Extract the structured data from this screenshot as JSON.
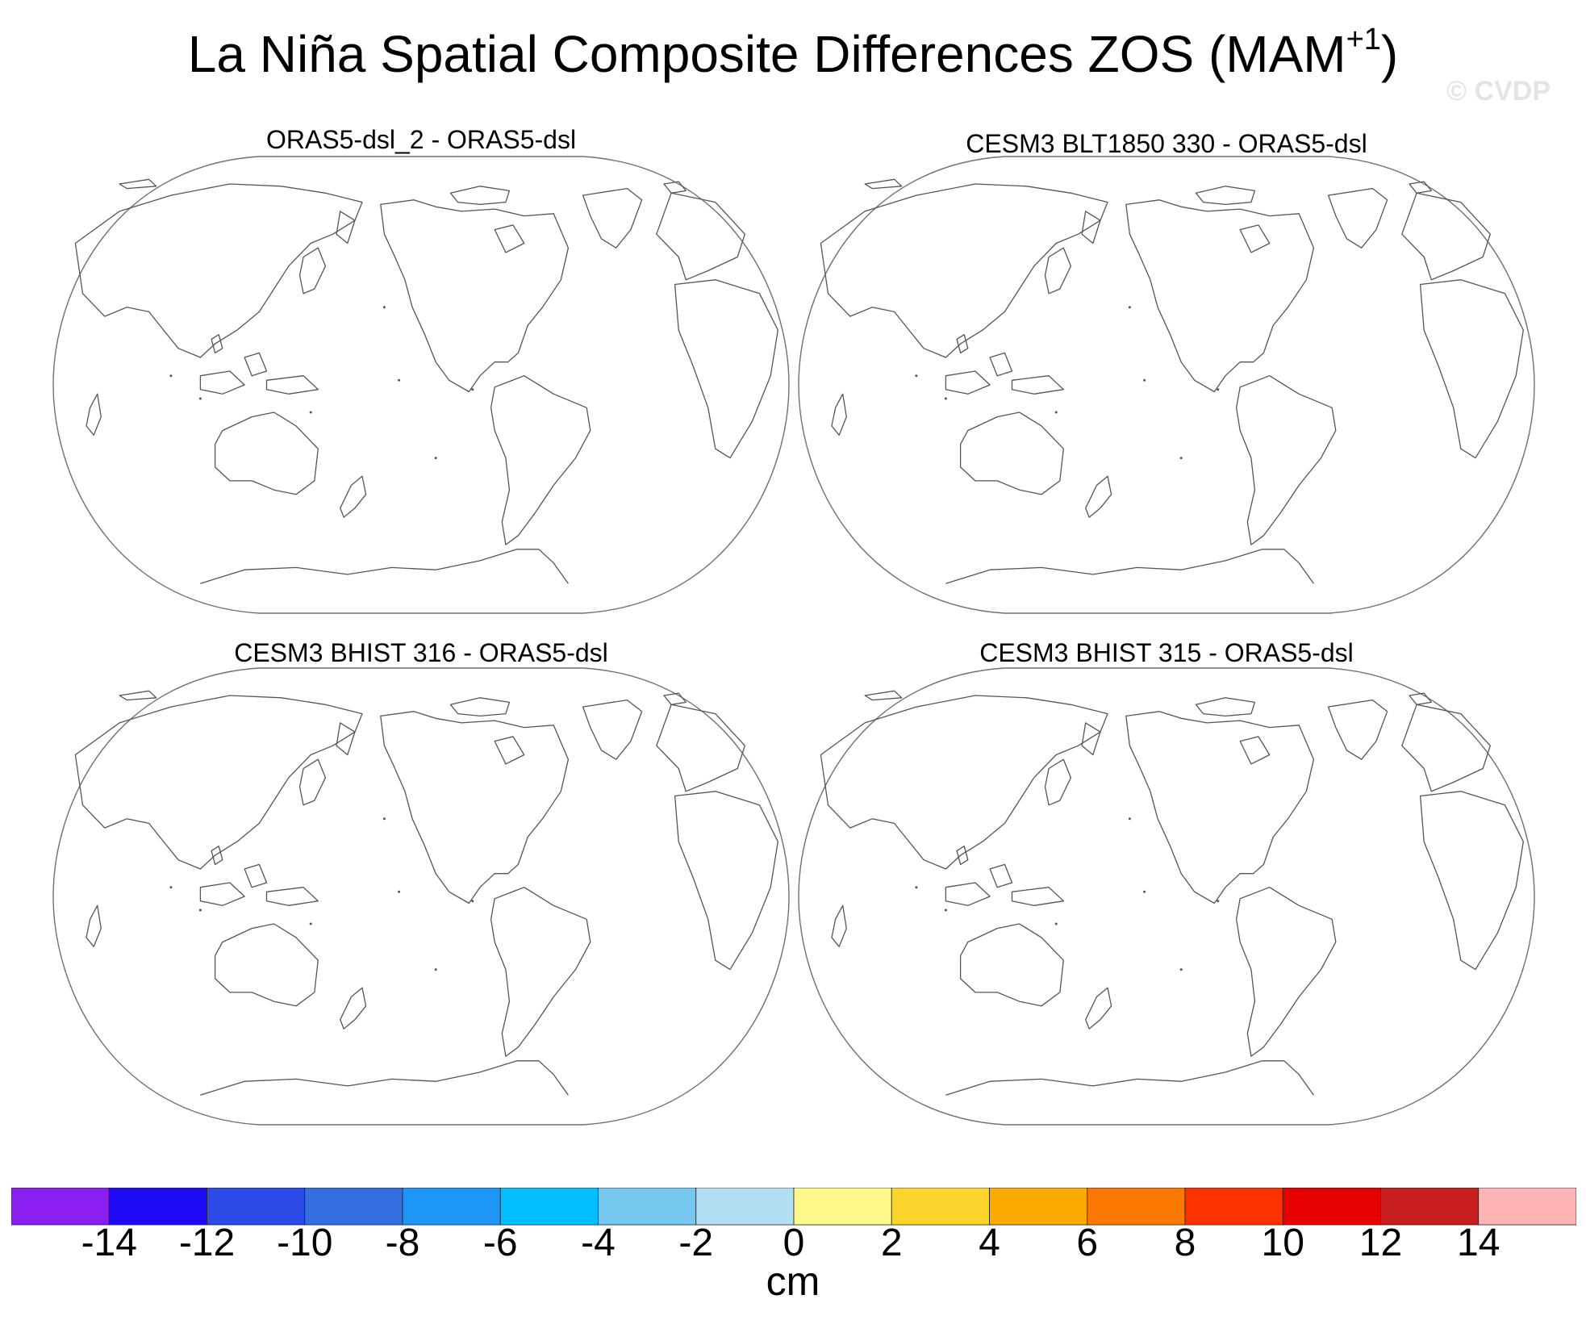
{
  "title": {
    "main": "La Niña Spatial Composite Differences ZOS (MAM",
    "superscript": "+1",
    "close": ")"
  },
  "watermark": "© CVDP",
  "panels": [
    {
      "title": "ORAS5-dsl_2 - ORAS5-dsl",
      "projection": "robinson-pacific-centered",
      "coastline_color": "#555555"
    },
    {
      "title": "CESM3 BLT1850 330 - ORAS5-dsl",
      "projection": "robinson-pacific-centered",
      "coastline_color": "#555555"
    },
    {
      "title": "CESM3 BHIST 316 - ORAS5-dsl",
      "projection": "robinson-pacific-centered",
      "coastline_color": "#555555"
    },
    {
      "title": "CESM3 BHIST 315 - ORAS5-dsl",
      "projection": "robinson-pacific-centered",
      "coastline_color": "#555555"
    }
  ],
  "colorbar": {
    "unit": "cm",
    "tick_labels": [
      "-14",
      "-12",
      "-10",
      "-8",
      "-6",
      "-4",
      "-2",
      "0",
      "2",
      "4",
      "6",
      "8",
      "10",
      "12",
      "14"
    ],
    "colors": [
      "#8b1ef0",
      "#1e0af5",
      "#2d4be8",
      "#336fe0",
      "#1e96f5",
      "#00beff",
      "#76c8f0",
      "#b4def2",
      "#fdf88a",
      "#fcd42c",
      "#fca900",
      "#fc7800",
      "#fc3200",
      "#e60000",
      "#c81e1e",
      "#feb4b4"
    ]
  }
}
